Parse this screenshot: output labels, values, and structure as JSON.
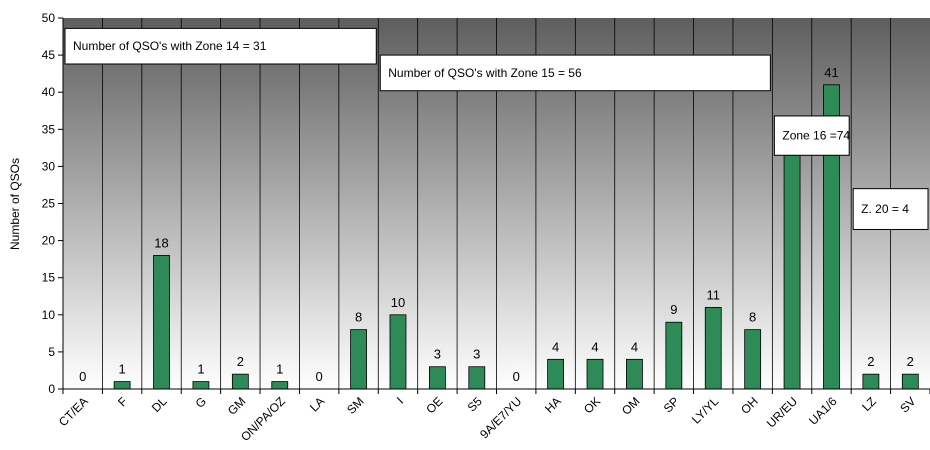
{
  "chart_data": {
    "type": "bar",
    "ylabel": "Number of QSOs",
    "xlabel": "",
    "title": "",
    "ylim": [
      0,
      50
    ],
    "ytick_step": 5,
    "categories": [
      "CT/EA",
      "F",
      "DL",
      "G",
      "GM",
      "ON/PA/OZ",
      "LA",
      "SM",
      "I",
      "OE",
      "S5",
      "9A/E7/YU",
      "HA",
      "OK",
      "OM",
      "SP",
      "LY/YL",
      "OH",
      "UR/EU",
      "UA1/6",
      "LZ",
      "SV"
    ],
    "values": [
      0,
      1,
      18,
      1,
      2,
      1,
      0,
      8,
      10,
      3,
      3,
      0,
      4,
      4,
      4,
      9,
      11,
      8,
      33,
      41,
      2,
      2
    ],
    "grid": true,
    "colors": {
      "bar": "#2e8b57",
      "plot_top": "#5e5e5e",
      "plot_bottom": "#ffffff",
      "gridline": "#000000"
    },
    "annotations": [
      {
        "text": "Number of QSO's with Zone 14 = 31",
        "first_category": "CT/EA",
        "last_category": "SM",
        "y_top": 48.6,
        "y_bottom": 43.8
      },
      {
        "text": "Number of QSO's with Zone 15 = 56",
        "first_category": "I",
        "last_category": "OH",
        "y_top": 45.0,
        "y_bottom": 40.2
      },
      {
        "text": "Zone 16 =74",
        "first_category": "UR/EU",
        "last_category": "UA1/6",
        "y_top": 36.8,
        "y_bottom": 31.5
      },
      {
        "text": "Z. 20 = 4",
        "first_category": "LZ",
        "last_category": "SV",
        "y_top": 27.0,
        "y_bottom": 21.5
      }
    ]
  }
}
